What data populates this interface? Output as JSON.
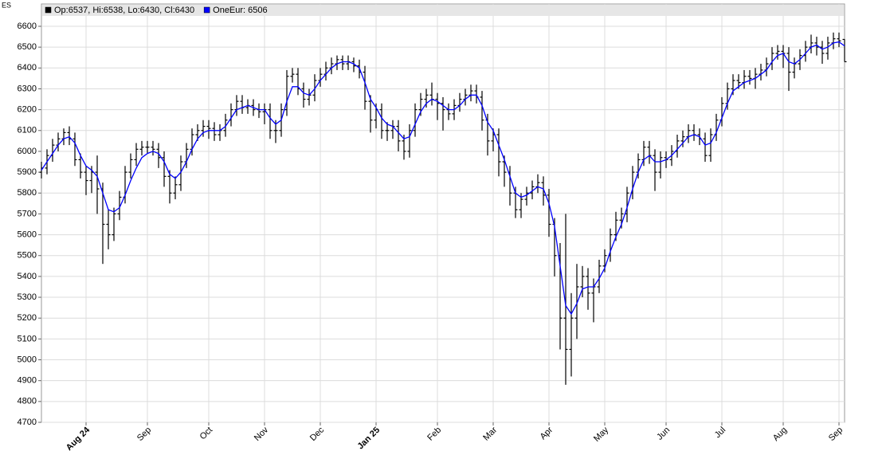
{
  "chart_data": {
    "type": "ohlc",
    "symbol": "ES",
    "series": [
      {
        "name": "Op:6537, Hi:6538, Lo:6430, Cl:6430",
        "color": "#000000",
        "open": [
          5900,
          5920,
          5980,
          6030,
          6060,
          6090,
          6060,
          5960,
          5900,
          5860,
          5900,
          5820,
          5650,
          5600,
          5700,
          5780,
          5900,
          5960,
          6010,
          6020,
          6020,
          6010,
          5970,
          5880,
          5800,
          5840,
          5950,
          6010,
          6080,
          6100,
          6120,
          6110,
          6080,
          6100,
          6150,
          6200,
          6240,
          6210,
          6220,
          6200,
          6190,
          6200,
          6100,
          6100,
          6200,
          6360,
          6370,
          6300,
          6250,
          6270,
          6340,
          6370,
          6400,
          6420,
          6440,
          6420,
          6430,
          6410,
          6380,
          6240,
          6150,
          6200,
          6100,
          6100,
          6120,
          6050,
          6000,
          6100,
          6200,
          6250,
          6270,
          6250,
          6230,
          6200,
          6180,
          6220,
          6250,
          6270,
          6290,
          6260,
          6150,
          6050,
          6080,
          5950,
          5900,
          5800,
          5720,
          5770,
          5800,
          5830,
          5850,
          5790,
          5650,
          5500,
          5200,
          5050,
          5200,
          5350,
          5400,
          5320,
          5350,
          5450,
          5500,
          5600,
          5670,
          5700,
          5800,
          5900,
          5960,
          6020,
          5980,
          5900,
          5970,
          5960,
          6000,
          6050,
          6070,
          6100,
          6080,
          6060,
          5980,
          6080,
          6150,
          6230,
          6300,
          6340,
          6330,
          6360,
          6350,
          6370,
          6390,
          6420,
          6470,
          6480,
          6470,
          6380,
          6420,
          6460,
          6500,
          6520,
          6500,
          6470,
          6520,
          6540,
          6537
        ],
        "high": [
          5950,
          6010,
          6060,
          6090,
          6110,
          6120,
          6090,
          5990,
          5930,
          5930,
          5980,
          5850,
          5720,
          5730,
          5810,
          5930,
          5990,
          6040,
          6050,
          6050,
          6050,
          6040,
          6000,
          5910,
          5880,
          5980,
          6040,
          6110,
          6130,
          6150,
          6150,
          6140,
          6130,
          6180,
          6230,
          6270,
          6270,
          6250,
          6250,
          6230,
          6230,
          6230,
          6150,
          6230,
          6390,
          6400,
          6400,
          6330,
          6300,
          6370,
          6400,
          6430,
          6450,
          6460,
          6460,
          6460,
          6450,
          6440,
          6410,
          6270,
          6230,
          6230,
          6140,
          6150,
          6150,
          6080,
          6130,
          6230,
          6280,
          6300,
          6330,
          6280,
          6260,
          6230,
          6250,
          6280,
          6300,
          6320,
          6320,
          6290,
          6180,
          6110,
          6110,
          5980,
          5930,
          5830,
          5800,
          5830,
          5860,
          5890,
          5880,
          5820,
          5680,
          5560,
          5700,
          5320,
          5460,
          5450,
          5440,
          5390,
          5480,
          5530,
          5630,
          5710,
          5730,
          5830,
          5930,
          5990,
          6050,
          6050,
          6010,
          6000,
          6000,
          6030,
          6080,
          6100,
          6130,
          6130,
          6110,
          6090,
          6110,
          6180,
          6260,
          6330,
          6370,
          6370,
          6390,
          6390,
          6400,
          6420,
          6450,
          6500,
          6510,
          6510,
          6500,
          6450,
          6490,
          6530,
          6560,
          6550,
          6530,
          6550,
          6570,
          6570,
          6538
        ],
        "low": [
          5870,
          5890,
          5950,
          6000,
          6030,
          6030,
          5930,
          5870,
          5790,
          5800,
          5700,
          5460,
          5530,
          5570,
          5670,
          5750,
          5870,
          5930,
          5980,
          5990,
          5980,
          5920,
          5830,
          5750,
          5770,
          5810,
          5920,
          5980,
          6050,
          6070,
          6060,
          6050,
          6050,
          6070,
          6120,
          6170,
          6180,
          6180,
          6170,
          6160,
          6130,
          6060,
          6040,
          6070,
          6170,
          6330,
          6270,
          6210,
          6220,
          6240,
          6310,
          6340,
          6370,
          6390,
          6390,
          6390,
          6380,
          6350,
          6200,
          6090,
          6110,
          6060,
          6050,
          6060,
          6000,
          5960,
          5970,
          6070,
          6170,
          6210,
          6220,
          6150,
          6100,
          6150,
          6150,
          6190,
          6220,
          6240,
          6230,
          6100,
          5980,
          6000,
          5880,
          5830,
          5740,
          5680,
          5680,
          5740,
          5770,
          5800,
          5740,
          5590,
          5400,
          5050,
          4880,
          4920,
          5100,
          5300,
          5240,
          5180,
          5320,
          5420,
          5470,
          5570,
          5630,
          5660,
          5770,
          5870,
          5930,
          5940,
          5810,
          5870,
          5920,
          5930,
          5970,
          6020,
          6040,
          6050,
          6030,
          5950,
          5950,
          6050,
          6120,
          6200,
          6270,
          6300,
          6300,
          6320,
          6300,
          6340,
          6360,
          6390,
          6440,
          6400,
          6290,
          6350,
          6390,
          6430,
          6470,
          6460,
          6420,
          6440,
          6490,
          6500,
          6430
        ],
        "close": [
          5920,
          5980,
          6030,
          6060,
          6090,
          6060,
          5960,
          5900,
          5860,
          5900,
          5820,
          5650,
          5600,
          5700,
          5780,
          5900,
          5960,
          6010,
          6020,
          6020,
          6010,
          5970,
          5880,
          5800,
          5840,
          5950,
          6010,
          6080,
          6100,
          6120,
          6110,
          6080,
          6100,
          6150,
          6200,
          6240,
          6210,
          6220,
          6200,
          6190,
          6200,
          6100,
          6100,
          6200,
          6360,
          6370,
          6300,
          6250,
          6270,
          6340,
          6370,
          6400,
          6420,
          6440,
          6420,
          6430,
          6410,
          6380,
          6240,
          6150,
          6200,
          6100,
          6100,
          6120,
          6050,
          6000,
          6100,
          6200,
          6250,
          6270,
          6250,
          6230,
          6200,
          6180,
          6220,
          6250,
          6270,
          6290,
          6260,
          6150,
          6050,
          6080,
          5950,
          5900,
          5800,
          5720,
          5770,
          5800,
          5830,
          5850,
          5790,
          5650,
          5500,
          5200,
          5050,
          5200,
          5350,
          5400,
          5320,
          5350,
          5450,
          5500,
          5600,
          5670,
          5700,
          5800,
          5900,
          5960,
          6020,
          5980,
          5900,
          5970,
          5960,
          6000,
          6050,
          6070,
          6100,
          6080,
          6060,
          5980,
          6080,
          6150,
          6230,
          6300,
          6340,
          6330,
          6360,
          6350,
          6370,
          6390,
          6420,
          6470,
          6480,
          6470,
          6380,
          6420,
          6460,
          6500,
          6520,
          6500,
          6470,
          6520,
          6540,
          6530,
          6430
        ]
      },
      {
        "name": "OneEur: 6506",
        "color": "#0000ff",
        "values": [
          5910,
          5950,
          5990,
          6030,
          6060,
          6070,
          6040,
          5980,
          5930,
          5910,
          5880,
          5800,
          5720,
          5710,
          5730,
          5790,
          5860,
          5920,
          5970,
          5990,
          6000,
          5990,
          5950,
          5890,
          5870,
          5900,
          5950,
          6010,
          6060,
          6090,
          6100,
          6100,
          6100,
          6120,
          6160,
          6200,
          6210,
          6220,
          6210,
          6200,
          6200,
          6160,
          6130,
          6150,
          6240,
          6310,
          6310,
          6280,
          6270,
          6300,
          6340,
          6370,
          6400,
          6420,
          6430,
          6430,
          6420,
          6400,
          6330,
          6250,
          6210,
          6160,
          6130,
          6120,
          6090,
          6060,
          6070,
          6130,
          6190,
          6230,
          6250,
          6240,
          6220,
          6200,
          6200,
          6220,
          6250,
          6270,
          6270,
          6220,
          6140,
          6100,
          6030,
          5960,
          5880,
          5800,
          5780,
          5790,
          5810,
          5830,
          5820,
          5750,
          5640,
          5450,
          5260,
          5220,
          5270,
          5340,
          5350,
          5350,
          5390,
          5440,
          5520,
          5590,
          5650,
          5730,
          5820,
          5900,
          5960,
          5980,
          5950,
          5950,
          5960,
          5980,
          6010,
          6040,
          6070,
          6080,
          6070,
          6030,
          6040,
          6090,
          6160,
          6230,
          6290,
          6310,
          6330,
          6340,
          6350,
          6370,
          6390,
          6430,
          6460,
          6470,
          6430,
          6420,
          6440,
          6470,
          6500,
          6510,
          6490,
          6500,
          6520,
          6525,
          6506
        ]
      }
    ],
    "xlim": [
      0,
      144
    ],
    "xticks": [
      {
        "value": 8,
        "label": "Aug 24",
        "bold": true
      },
      {
        "value": 19,
        "label": "Sep"
      },
      {
        "value": 30,
        "label": "Oct"
      },
      {
        "value": 40,
        "label": "Nov"
      },
      {
        "value": 50,
        "label": "Dec"
      },
      {
        "value": 60,
        "label": "Jan 25",
        "bold": true
      },
      {
        "value": 71,
        "label": "Feb"
      },
      {
        "value": 81,
        "label": "Mar"
      },
      {
        "value": 91,
        "label": "Apr"
      },
      {
        "value": 101,
        "label": "May"
      },
      {
        "value": 112,
        "label": "Jun"
      },
      {
        "value": 122,
        "label": "Jul"
      },
      {
        "value": 133,
        "label": "Aug"
      },
      {
        "value": 143,
        "label": "Sep"
      }
    ],
    "ylim": [
      4700,
      6707
    ],
    "yticks": [
      4700,
      4800,
      4900,
      5000,
      5100,
      5200,
      5300,
      5400,
      5500,
      5600,
      5700,
      5800,
      5900,
      6000,
      6100,
      6200,
      6300,
      6400,
      6500,
      6600
    ],
    "grid": true
  }
}
